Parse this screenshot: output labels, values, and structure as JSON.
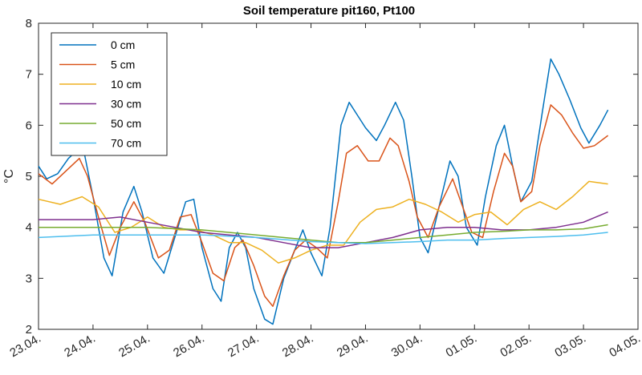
{
  "chart_data": {
    "type": "line",
    "title": "Soil temperature pit160, Pt100",
    "xlabel": "",
    "ylabel": "°C",
    "x_ticks": [
      "23.04.",
      "24.04.",
      "25.04.",
      "26.04.",
      "27.04.",
      "28.04.",
      "29.04.",
      "30.04.",
      "01.05.",
      "02.05.",
      "03.05.",
      "04.05."
    ],
    "xlim": [
      0,
      11
    ],
    "ylim": [
      2,
      8
    ],
    "y_ticks": [
      2,
      3,
      4,
      5,
      6,
      7,
      8
    ],
    "grid": false,
    "legend_position": "top-left",
    "series": [
      {
        "name": "0 cm",
        "color": "#0072BD",
        "points": [
          [
            0,
            5.2
          ],
          [
            0.15,
            4.95
          ],
          [
            0.35,
            5.05
          ],
          [
            0.55,
            5.35
          ],
          [
            0.75,
            5.55
          ],
          [
            0.85,
            5.4
          ],
          [
            1.0,
            4.6
          ],
          [
            1.2,
            3.4
          ],
          [
            1.35,
            3.05
          ],
          [
            1.55,
            4.3
          ],
          [
            1.75,
            4.8
          ],
          [
            1.9,
            4.3
          ],
          [
            2.1,
            3.4
          ],
          [
            2.3,
            3.1
          ],
          [
            2.5,
            3.8
          ],
          [
            2.7,
            4.5
          ],
          [
            2.85,
            4.55
          ],
          [
            3.0,
            3.6
          ],
          [
            3.2,
            2.8
          ],
          [
            3.35,
            2.55
          ],
          [
            3.5,
            3.6
          ],
          [
            3.65,
            3.9
          ],
          [
            3.8,
            3.6
          ],
          [
            3.95,
            2.8
          ],
          [
            4.15,
            2.2
          ],
          [
            4.3,
            2.1
          ],
          [
            4.5,
            3.0
          ],
          [
            4.7,
            3.55
          ],
          [
            4.85,
            3.95
          ],
          [
            5.0,
            3.5
          ],
          [
            5.2,
            3.05
          ],
          [
            5.35,
            4.0
          ],
          [
            5.55,
            6.0
          ],
          [
            5.7,
            6.45
          ],
          [
            5.85,
            6.2
          ],
          [
            6.0,
            5.95
          ],
          [
            6.2,
            5.7
          ],
          [
            6.35,
            6.0
          ],
          [
            6.55,
            6.45
          ],
          [
            6.7,
            6.1
          ],
          [
            6.85,
            5.0
          ],
          [
            7.0,
            3.8
          ],
          [
            7.15,
            3.5
          ],
          [
            7.35,
            4.4
          ],
          [
            7.55,
            5.3
          ],
          [
            7.7,
            5.0
          ],
          [
            7.85,
            4.0
          ],
          [
            8.05,
            3.65
          ],
          [
            8.2,
            4.6
          ],
          [
            8.4,
            5.6
          ],
          [
            8.55,
            6.0
          ],
          [
            8.7,
            5.2
          ],
          [
            8.85,
            4.5
          ],
          [
            9.05,
            4.9
          ],
          [
            9.25,
            6.3
          ],
          [
            9.4,
            7.3
          ],
          [
            9.55,
            7.0
          ],
          [
            9.75,
            6.5
          ],
          [
            9.95,
            5.95
          ],
          [
            10.1,
            5.65
          ],
          [
            10.3,
            6.0
          ],
          [
            10.45,
            6.3
          ]
        ]
      },
      {
        "name": "5 cm",
        "color": "#D95319",
        "points": [
          [
            0,
            5.05
          ],
          [
            0.25,
            4.85
          ],
          [
            0.5,
            5.1
          ],
          [
            0.75,
            5.35
          ],
          [
            0.9,
            5.0
          ],
          [
            1.1,
            4.2
          ],
          [
            1.3,
            3.45
          ],
          [
            1.5,
            4.0
          ],
          [
            1.75,
            4.5
          ],
          [
            1.95,
            4.1
          ],
          [
            2.2,
            3.4
          ],
          [
            2.4,
            3.55
          ],
          [
            2.6,
            4.2
          ],
          [
            2.8,
            4.25
          ],
          [
            3.0,
            3.7
          ],
          [
            3.2,
            3.1
          ],
          [
            3.4,
            2.95
          ],
          [
            3.6,
            3.6
          ],
          [
            3.75,
            3.75
          ],
          [
            3.95,
            3.25
          ],
          [
            4.15,
            2.65
          ],
          [
            4.3,
            2.45
          ],
          [
            4.5,
            3.05
          ],
          [
            4.7,
            3.55
          ],
          [
            4.9,
            3.75
          ],
          [
            5.1,
            3.6
          ],
          [
            5.3,
            3.4
          ],
          [
            5.5,
            4.5
          ],
          [
            5.65,
            5.45
          ],
          [
            5.85,
            5.6
          ],
          [
            6.05,
            5.3
          ],
          [
            6.25,
            5.3
          ],
          [
            6.45,
            5.75
          ],
          [
            6.6,
            5.6
          ],
          [
            6.8,
            4.9
          ],
          [
            6.95,
            4.2
          ],
          [
            7.15,
            3.8
          ],
          [
            7.35,
            4.4
          ],
          [
            7.6,
            4.95
          ],
          [
            7.75,
            4.5
          ],
          [
            7.95,
            3.9
          ],
          [
            8.15,
            3.8
          ],
          [
            8.35,
            4.7
          ],
          [
            8.55,
            5.45
          ],
          [
            8.7,
            5.2
          ],
          [
            8.85,
            4.5
          ],
          [
            9.05,
            4.7
          ],
          [
            9.2,
            5.6
          ],
          [
            9.4,
            6.4
          ],
          [
            9.6,
            6.2
          ],
          [
            9.8,
            5.85
          ],
          [
            10.0,
            5.55
          ],
          [
            10.2,
            5.6
          ],
          [
            10.45,
            5.8
          ]
        ]
      },
      {
        "name": "10 cm",
        "color": "#EDB120",
        "points": [
          [
            0,
            4.55
          ],
          [
            0.4,
            4.45
          ],
          [
            0.8,
            4.6
          ],
          [
            1.1,
            4.4
          ],
          [
            1.4,
            3.9
          ],
          [
            1.7,
            4.0
          ],
          [
            2.0,
            4.2
          ],
          [
            2.3,
            4.0
          ],
          [
            2.6,
            3.95
          ],
          [
            2.9,
            3.95
          ],
          [
            3.2,
            3.85
          ],
          [
            3.5,
            3.7
          ],
          [
            3.8,
            3.7
          ],
          [
            4.1,
            3.55
          ],
          [
            4.4,
            3.3
          ],
          [
            4.7,
            3.4
          ],
          [
            5.0,
            3.55
          ],
          [
            5.3,
            3.65
          ],
          [
            5.6,
            3.65
          ],
          [
            5.9,
            4.1
          ],
          [
            6.2,
            4.35
          ],
          [
            6.5,
            4.4
          ],
          [
            6.8,
            4.55
          ],
          [
            7.1,
            4.45
          ],
          [
            7.4,
            4.3
          ],
          [
            7.7,
            4.1
          ],
          [
            8.0,
            4.25
          ],
          [
            8.3,
            4.3
          ],
          [
            8.6,
            4.05
          ],
          [
            8.9,
            4.35
          ],
          [
            9.2,
            4.5
          ],
          [
            9.5,
            4.35
          ],
          [
            9.8,
            4.6
          ],
          [
            10.1,
            4.9
          ],
          [
            10.45,
            4.85
          ]
        ]
      },
      {
        "name": "30 cm",
        "color": "#7E2F8E",
        "points": [
          [
            0,
            4.15
          ],
          [
            0.5,
            4.15
          ],
          [
            1.0,
            4.15
          ],
          [
            1.5,
            4.2
          ],
          [
            2.0,
            4.1
          ],
          [
            2.5,
            4.0
          ],
          [
            3.0,
            3.9
          ],
          [
            3.5,
            3.85
          ],
          [
            4.0,
            3.8
          ],
          [
            4.5,
            3.7
          ],
          [
            5.0,
            3.6
          ],
          [
            5.5,
            3.6
          ],
          [
            6.0,
            3.7
          ],
          [
            6.5,
            3.8
          ],
          [
            7.0,
            3.95
          ],
          [
            7.5,
            4.0
          ],
          [
            8.0,
            4.0
          ],
          [
            8.5,
            3.95
          ],
          [
            9.0,
            3.95
          ],
          [
            9.5,
            4.0
          ],
          [
            10.0,
            4.1
          ],
          [
            10.45,
            4.3
          ]
        ]
      },
      {
        "name": "50 cm",
        "color": "#77AC30",
        "points": [
          [
            0,
            4.0
          ],
          [
            1.0,
            4.0
          ],
          [
            2.0,
            4.0
          ],
          [
            3.0,
            3.95
          ],
          [
            4.0,
            3.85
          ],
          [
            5.0,
            3.75
          ],
          [
            5.5,
            3.7
          ],
          [
            6.0,
            3.7
          ],
          [
            6.5,
            3.75
          ],
          [
            7.0,
            3.8
          ],
          [
            7.5,
            3.85
          ],
          [
            8.0,
            3.9
          ],
          [
            8.5,
            3.92
          ],
          [
            9.0,
            3.95
          ],
          [
            9.5,
            3.95
          ],
          [
            10.0,
            3.97
          ],
          [
            10.45,
            4.05
          ]
        ]
      },
      {
        "name": "70 cm",
        "color": "#4DBEEE",
        "points": [
          [
            0,
            3.8
          ],
          [
            1.0,
            3.85
          ],
          [
            2.0,
            3.85
          ],
          [
            3.0,
            3.85
          ],
          [
            4.0,
            3.8
          ],
          [
            5.0,
            3.72
          ],
          [
            5.5,
            3.7
          ],
          [
            6.0,
            3.68
          ],
          [
            6.5,
            3.7
          ],
          [
            7.0,
            3.72
          ],
          [
            7.5,
            3.75
          ],
          [
            8.0,
            3.75
          ],
          [
            8.5,
            3.78
          ],
          [
            9.0,
            3.8
          ],
          [
            9.5,
            3.82
          ],
          [
            10.0,
            3.85
          ],
          [
            10.45,
            3.9
          ]
        ]
      }
    ]
  }
}
